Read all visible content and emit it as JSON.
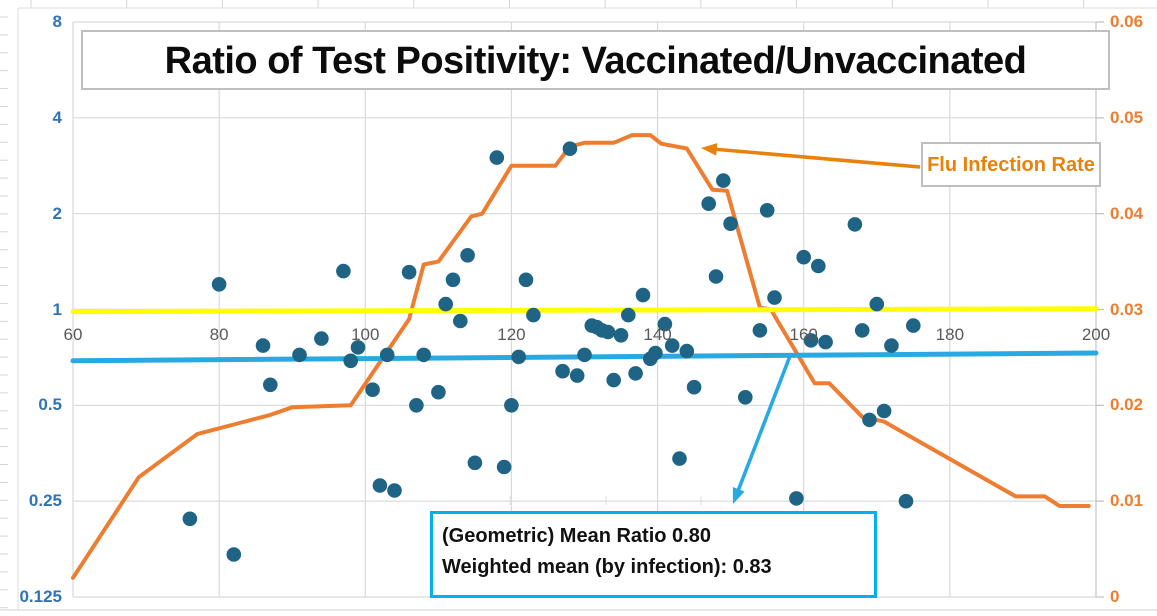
{
  "chart_data": {
    "type": "combo-scatter-line",
    "title": "Ratio of Test Positivity: Vaccinated/Unvaccinated",
    "x_axis": {
      "range": [
        60,
        200
      ],
      "ticks": [
        60,
        80,
        100,
        120,
        140,
        160,
        180,
        200
      ],
      "color": "#595959",
      "grid": true
    },
    "left_axis": {
      "scale": "log2",
      "range": [
        0.125,
        8
      ],
      "ticks": [
        8,
        4,
        2,
        1,
        0.5,
        0.25,
        0.125
      ],
      "labels": [
        "8",
        "4",
        "2",
        "1",
        "0.5",
        "0.25",
        "0.125"
      ],
      "color": "#2E75B6"
    },
    "right_axis": {
      "scale": "linear",
      "range": [
        0,
        0.06
      ],
      "ticks": [
        0.06,
        0.05,
        0.04,
        0.03,
        0.02,
        0.01,
        0
      ],
      "labels": [
        "0.06",
        "0.05",
        "0.04",
        "0.03",
        "0.02",
        "0.01",
        "0"
      ],
      "color": "#ED7D31"
    },
    "series": [
      {
        "name": "ratio-scatter",
        "type": "scatter",
        "axis": "left",
        "color": "#1F6484",
        "marker_radius": 7.3,
        "points": [
          [
            76,
            0.22
          ],
          [
            80,
            1.2
          ],
          [
            82,
            0.17
          ],
          [
            86,
            0.77
          ],
          [
            87,
            0.58
          ],
          [
            91,
            0.72
          ],
          [
            94,
            0.81
          ],
          [
            97,
            1.32
          ],
          [
            98,
            0.69
          ],
          [
            99,
            0.76
          ],
          [
            101,
            0.56
          ],
          [
            102,
            0.28
          ],
          [
            103,
            0.72
          ],
          [
            104,
            0.27
          ],
          [
            106,
            1.31
          ],
          [
            107,
            0.5
          ],
          [
            108,
            0.72
          ],
          [
            110,
            0.55
          ],
          [
            111,
            1.04
          ],
          [
            112,
            1.24
          ],
          [
            113,
            0.92
          ],
          [
            114,
            1.48
          ],
          [
            115,
            0.33
          ],
          [
            118,
            3.0
          ],
          [
            119,
            0.32
          ],
          [
            120,
            0.5
          ],
          [
            121,
            0.71
          ],
          [
            122,
            1.24
          ],
          [
            123,
            0.96
          ],
          [
            127,
            0.64
          ],
          [
            128,
            3.2
          ],
          [
            129,
            0.62
          ],
          [
            130,
            0.72
          ],
          [
            131,
            0.89
          ],
          [
            131.7,
            0.88
          ],
          [
            132.4,
            0.86
          ],
          [
            133.2,
            0.85
          ],
          [
            134,
            0.6
          ],
          [
            135,
            0.83
          ],
          [
            136,
            0.96
          ],
          [
            137,
            0.63
          ],
          [
            138,
            1.11
          ],
          [
            139,
            0.7
          ],
          [
            139.7,
            0.73
          ],
          [
            141,
            0.9
          ],
          [
            142,
            0.77
          ],
          [
            143,
            0.34
          ],
          [
            144,
            0.74
          ],
          [
            145,
            0.57
          ],
          [
            147,
            2.15
          ],
          [
            148,
            1.27
          ],
          [
            149,
            2.54
          ],
          [
            150,
            1.86
          ],
          [
            152,
            0.53
          ],
          [
            154,
            0.86
          ],
          [
            155,
            2.05
          ],
          [
            156,
            1.09
          ],
          [
            159,
            0.255
          ],
          [
            160,
            1.46
          ],
          [
            161,
            0.8
          ],
          [
            162,
            1.37
          ],
          [
            163,
            0.79
          ],
          [
            167,
            1.85
          ],
          [
            168,
            0.86
          ],
          [
            169,
            0.45
          ],
          [
            170,
            1.04
          ],
          [
            171,
            0.48
          ],
          [
            172,
            0.77
          ],
          [
            174,
            0.25
          ],
          [
            175,
            0.89
          ]
        ]
      },
      {
        "name": "flu-infection-rate",
        "type": "line",
        "axis": "right",
        "color": "#ED7D31",
        "width": 4,
        "points": [
          [
            60,
            0.002
          ],
          [
            69,
            0.0125
          ],
          [
            77,
            0.017
          ],
          [
            82,
            0.018
          ],
          [
            87,
            0.019
          ],
          [
            90,
            0.0198
          ],
          [
            98,
            0.02
          ],
          [
            106,
            0.029
          ],
          [
            108,
            0.0347
          ],
          [
            110,
            0.035
          ],
          [
            114.5,
            0.0397
          ],
          [
            116,
            0.04
          ],
          [
            120,
            0.045
          ],
          [
            126,
            0.045
          ],
          [
            128,
            0.047
          ],
          [
            130,
            0.0474
          ],
          [
            134,
            0.0474
          ],
          [
            136.5,
            0.0482
          ],
          [
            139,
            0.0482
          ],
          [
            140.5,
            0.0473
          ],
          [
            144,
            0.0468
          ],
          [
            147.5,
            0.0425
          ],
          [
            149.5,
            0.0424
          ],
          [
            154,
            0.0302
          ],
          [
            155.5,
            0.03
          ],
          [
            161.5,
            0.0223
          ],
          [
            163.5,
            0.0223
          ],
          [
            168,
            0.0188
          ],
          [
            171,
            0.0183
          ],
          [
            189,
            0.0105
          ],
          [
            193,
            0.0105
          ],
          [
            195,
            0.0095
          ],
          [
            199,
            0.0095
          ]
        ]
      },
      {
        "name": "yellow-reference-line",
        "type": "line",
        "axis": "left",
        "color": "#FFFF00",
        "width": 5,
        "points": [
          [
            60,
            0.985
          ],
          [
            200,
            1.005
          ]
        ]
      },
      {
        "name": "blue-mean-trend-line",
        "type": "line",
        "axis": "left",
        "color": "#29A9E1",
        "width": 5,
        "points": [
          [
            60,
            0.69
          ],
          [
            200,
            0.73
          ]
        ]
      }
    ],
    "annotations": {
      "flu_label": "Flu Infection Rate",
      "mean_box_line1": "(Geometric) Mean Ratio 0.80",
      "mean_box_line2": "Weighted mean (by infection): 0.83",
      "geometric_mean_ratio": "0.80",
      "weighted_mean": "0.83",
      "flu_arrow": {
        "from": [
          920,
          167
        ],
        "to": [
          701,
          148
        ],
        "color": "#E8820C"
      },
      "mean_arrow": {
        "from": [
          790,
          356
        ],
        "to": [
          733,
          504
        ],
        "color": "#29A9E1"
      }
    },
    "legend_position": "none",
    "background": "#ffffff",
    "gridline_color": "#d9d9d9"
  }
}
